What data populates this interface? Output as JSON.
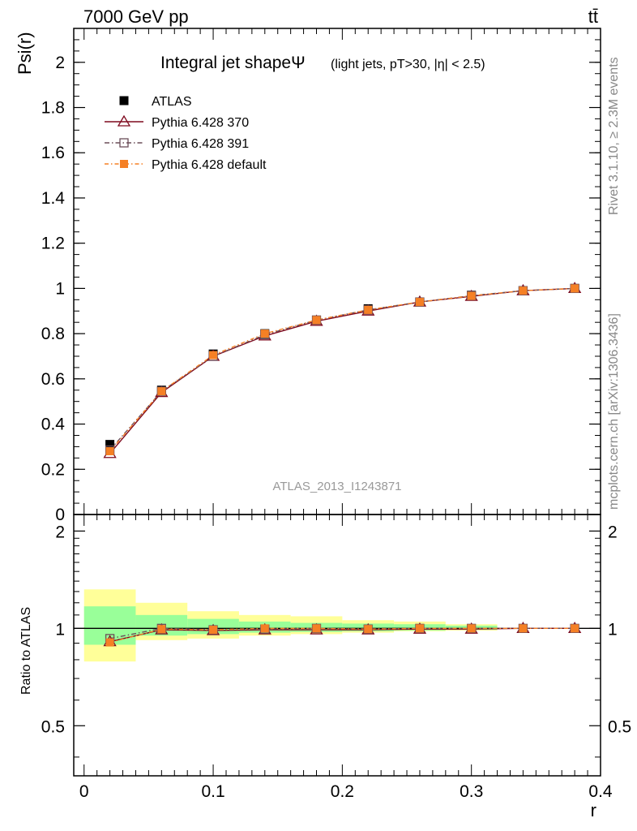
{
  "header": {
    "energy_label": "7000 GeV pp",
    "process_label": "tt̄"
  },
  "side_labels": {
    "rivet": "Rivet 3.1.10, ≥ 2.3M events",
    "mcplots": "mcplots.cern.ch [arXiv:1306.3436]"
  },
  "watermark": "ATLAS_2013_I1243871",
  "chart_data": [
    {
      "type": "line",
      "panel": "main",
      "title": "Integral jet shapeΨ",
      "subtitle": "(light jets, pT>30, |η| < 2.5)",
      "ylabel": "Psi(r)",
      "xlabel": "",
      "xlim": [
        -0.008,
        0.4
      ],
      "ylim": [
        0,
        2.15
      ],
      "yticks": [
        0,
        0.2,
        0.4,
        0.6,
        0.8,
        1,
        1.2,
        1.4,
        1.6,
        1.8,
        2
      ],
      "ytick_labels": [
        "0",
        "0.2",
        "0.4",
        "0.6",
        "0.8",
        "1",
        "1.2",
        "1.4",
        "1.6",
        "1.8",
        "2"
      ],
      "x": [
        0.02,
        0.06,
        0.1,
        0.14,
        0.18,
        0.22,
        0.26,
        0.3,
        0.34,
        0.38
      ],
      "legend_position": "top-left",
      "series": [
        {
          "name": "ATLAS",
          "values": [
            0.31,
            0.55,
            0.71,
            0.8,
            0.86,
            0.91,
            0.94,
            0.97,
            0.99,
            1.0
          ],
          "color": "#000000",
          "marker": "filled-square"
        },
        {
          "name": "Pythia 6.428 370",
          "values": [
            0.27,
            0.54,
            0.7,
            0.79,
            0.855,
            0.9,
            0.94,
            0.965,
            0.99,
            1.0
          ],
          "color": "#7f0a1e",
          "marker": "open-triangle"
        },
        {
          "name": "Pythia 6.428 391",
          "values": [
            0.285,
            0.545,
            0.7,
            0.795,
            0.86,
            0.905,
            0.94,
            0.968,
            0.99,
            1.0
          ],
          "color": "#6b4e59",
          "marker": "open-square"
        },
        {
          "name": "Pythia 6.428 default",
          "values": [
            0.28,
            0.545,
            0.705,
            0.8,
            0.86,
            0.905,
            0.94,
            0.967,
            0.99,
            1.0
          ],
          "color": "#f58025",
          "marker": "filled-square-small"
        }
      ]
    },
    {
      "type": "line",
      "panel": "ratio",
      "ylabel": "Ratio to ATLAS",
      "xlabel": "r",
      "xlim": [
        -0.008,
        0.4
      ],
      "ylim": [
        0.35,
        2.25
      ],
      "yticks": [
        0.5,
        1,
        2
      ],
      "ytick_labels": [
        "0.5",
        "1",
        "2"
      ],
      "xticks": [
        0,
        0.1,
        0.2,
        0.3,
        0.4
      ],
      "xtick_labels": [
        "0",
        "0.1",
        "0.2",
        "0.3",
        "0.4"
      ],
      "x": [
        0.02,
        0.06,
        0.1,
        0.14,
        0.18,
        0.22,
        0.26,
        0.3,
        0.34,
        0.38
      ],
      "bands": {
        "x_edges": [
          0,
          0.04,
          0.08,
          0.12,
          0.16,
          0.2,
          0.24,
          0.28,
          0.32,
          0.36,
          0.4
        ],
        "yellow_low": [
          0.79,
          0.92,
          0.93,
          0.95,
          0.96,
          0.97,
          0.98,
          0.985,
          1.0,
          1.0
        ],
        "yellow_high": [
          1.32,
          1.2,
          1.13,
          1.1,
          1.09,
          1.06,
          1.05,
          1.03,
          1.0,
          1.0
        ],
        "green_low": [
          0.89,
          0.95,
          0.96,
          0.97,
          0.975,
          0.98,
          0.985,
          0.99,
          1.0,
          1.0
        ],
        "green_high": [
          1.17,
          1.1,
          1.07,
          1.05,
          1.04,
          1.035,
          1.03,
          1.02,
          1.0,
          1.0
        ]
      },
      "series": [
        {
          "name": "Pythia 6.428 370",
          "values": [
            0.91,
            0.99,
            0.985,
            0.99,
            0.99,
            0.99,
            0.995,
            0.995,
            1.0,
            1.0
          ],
          "color": "#7f0a1e",
          "marker": "open-triangle"
        },
        {
          "name": "Pythia 6.428 391",
          "values": [
            0.93,
            1.0,
            0.99,
            0.995,
            1.0,
            0.995,
            1.0,
            1.0,
            1.0,
            1.0
          ],
          "color": "#6b4e59",
          "marker": "open-square"
        },
        {
          "name": "Pythia 6.428 default",
          "values": [
            0.905,
            0.995,
            0.99,
            1.0,
            1.0,
            0.995,
            1.0,
            1.0,
            1.0,
            1.0
          ],
          "color": "#f58025",
          "marker": "filled-square-small"
        }
      ]
    }
  ]
}
